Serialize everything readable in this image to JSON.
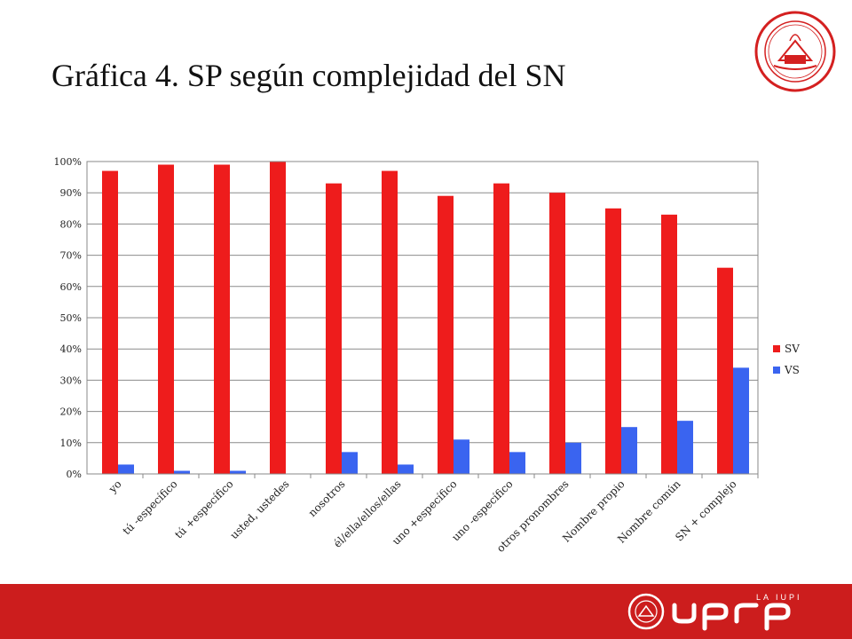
{
  "slide": {
    "title": "Gráfica 4. SP según complejidad del SN"
  },
  "footer": {
    "brand": "UPRRP",
    "tagline": "LA IUPI"
  },
  "colors": {
    "sv": "#ee1c1c",
    "vs": "#3a64f0",
    "footer": "#cc1d1d"
  },
  "icons": {
    "seal": "university-seal-icon",
    "logo": "uprrp-logo-icon"
  },
  "chart_data": {
    "type": "bar",
    "title": "",
    "xlabel": "",
    "ylabel": "",
    "ylim": [
      0,
      100
    ],
    "yticks": [
      "0%",
      "10%",
      "20%",
      "30%",
      "40%",
      "50%",
      "60%",
      "70%",
      "80%",
      "90%",
      "100%"
    ],
    "grid": true,
    "legend_position": "right",
    "categories": [
      "yo",
      "tú -específico",
      "tú +específico",
      "usted, ustedes",
      "nosotros",
      "él/ella/ellos/ellas",
      "uno +específico",
      "uno -específico",
      "otros pronombres",
      "Nombre propio",
      "Nombre común",
      "SN + complejo"
    ],
    "series": [
      {
        "name": "SV",
        "values": [
          97,
          99,
          99,
          100,
          93,
          97,
          89,
          93,
          90,
          85,
          83,
          66
        ]
      },
      {
        "name": "VS",
        "values": [
          3,
          1,
          1,
          0,
          7,
          3,
          11,
          7,
          10,
          15,
          17,
          34
        ]
      }
    ]
  }
}
